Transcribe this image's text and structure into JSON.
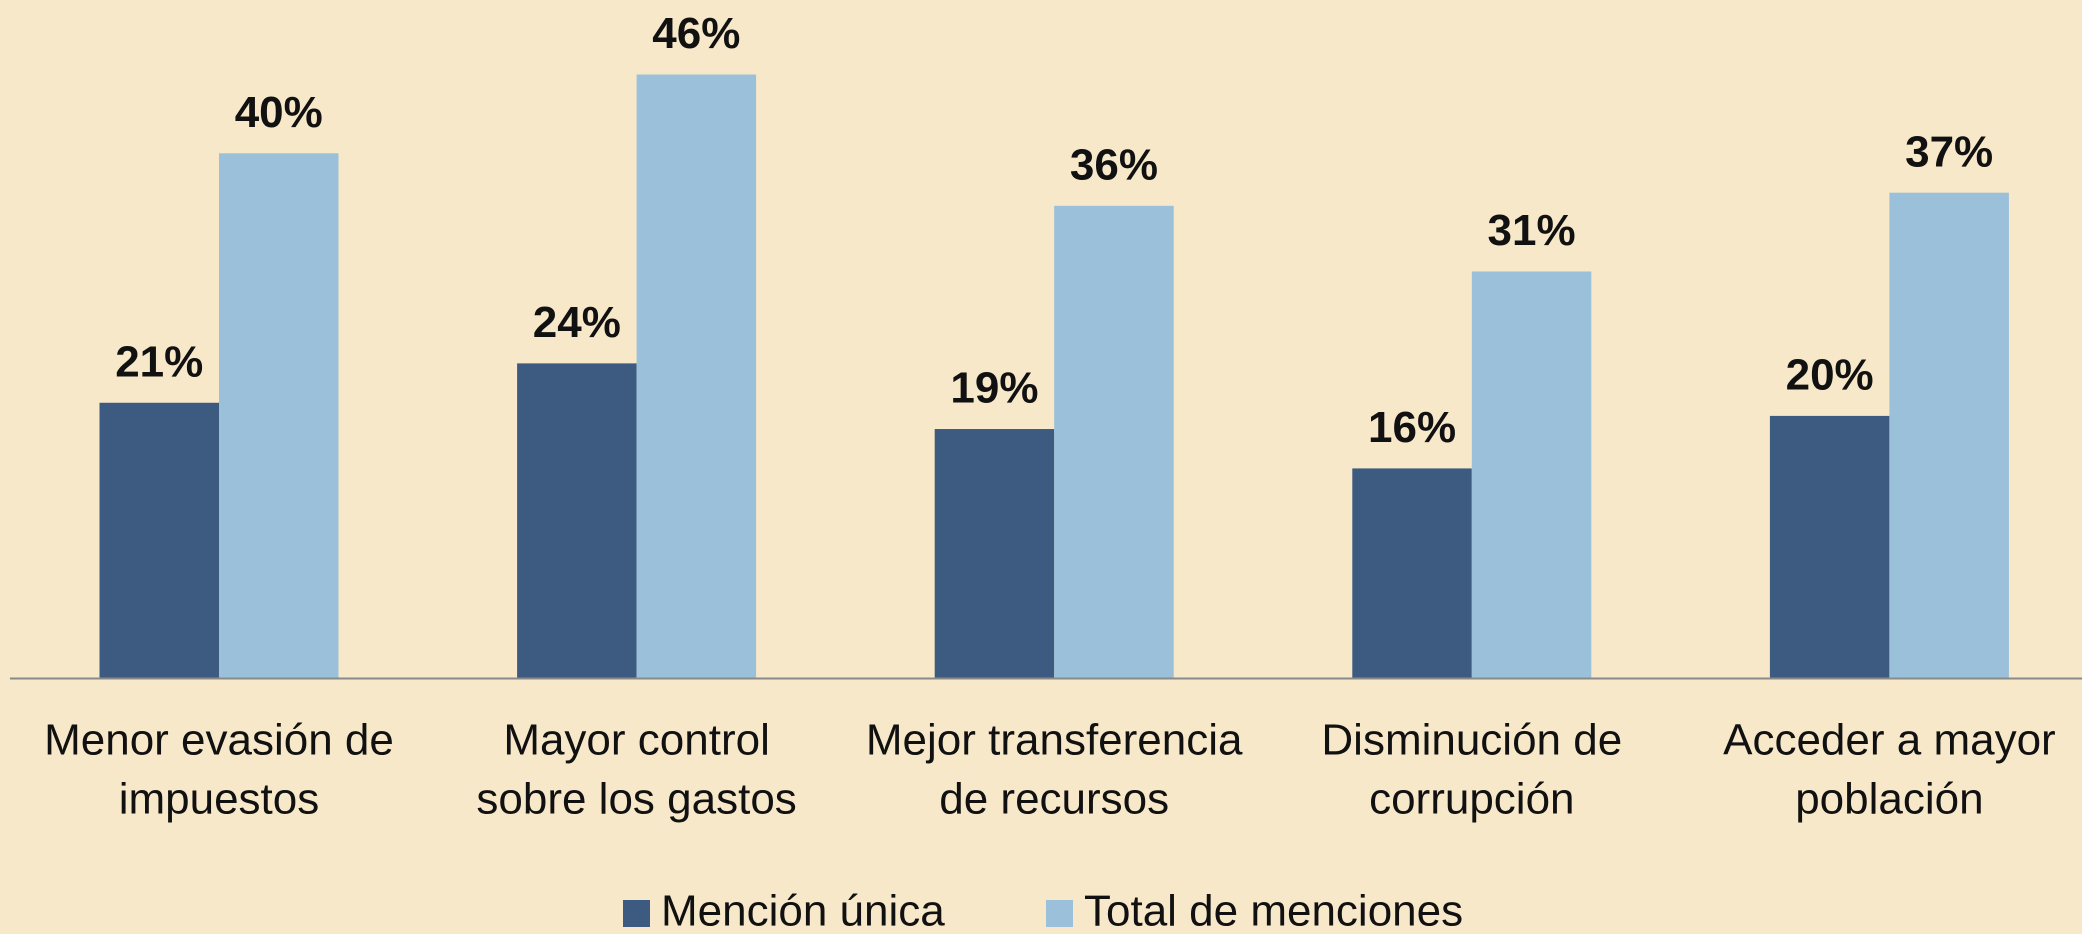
{
  "chart_data": {
    "type": "bar",
    "categories": [
      [
        "Menor evasión de",
        "impuestos"
      ],
      [
        "Mayor control",
        "sobre los gastos"
      ],
      [
        "Mejor transferencia",
        "de recursos"
      ],
      [
        "Disminución de",
        "corrupción"
      ],
      [
        "Acceder a mayor",
        "población"
      ]
    ],
    "series": [
      {
        "name": "Mención única",
        "color": "#3d5a80",
        "values": [
          21,
          24,
          19,
          16,
          20
        ],
        "value_labels": [
          "21%",
          "24%",
          "19%",
          "16%",
          "20%"
        ]
      },
      {
        "name": "Total de menciones",
        "color": "#9ac0da",
        "values": [
          40,
          46,
          36,
          31,
          37
        ],
        "value_labels": [
          "40%",
          "46%",
          "36%",
          "31%",
          "37%"
        ]
      }
    ],
    "ylim": [
      0,
      50
    ],
    "legend": "bottom"
  }
}
